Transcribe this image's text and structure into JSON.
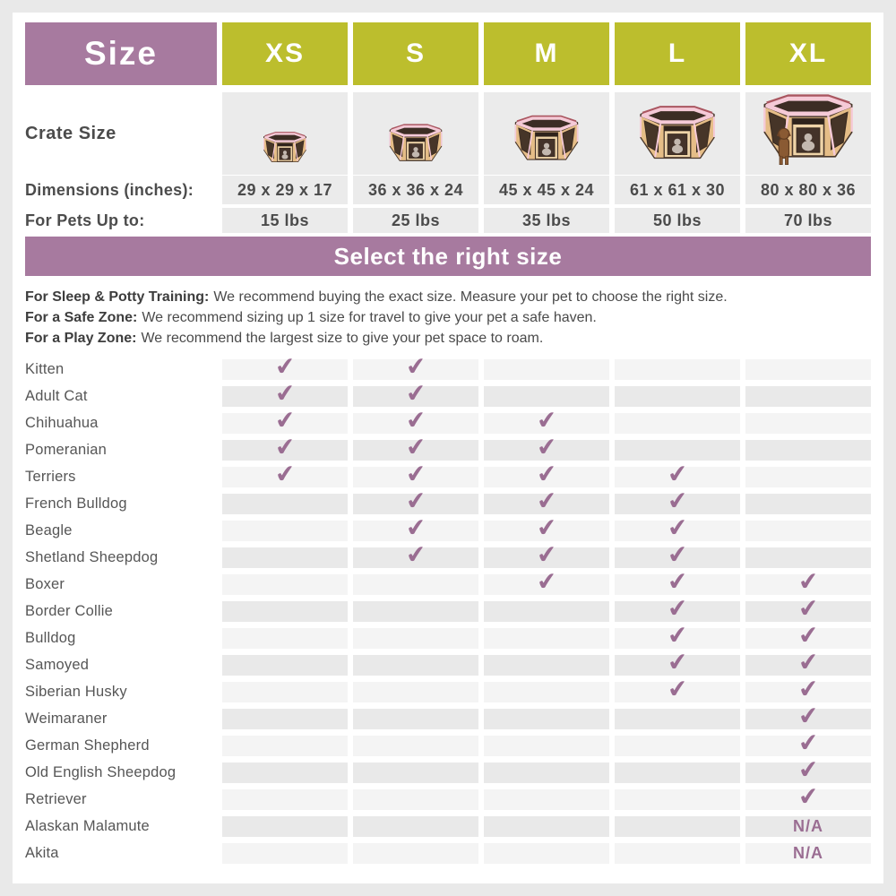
{
  "header": {
    "size_label": "Size",
    "columns": [
      "XS",
      "S",
      "M",
      "L",
      "XL"
    ]
  },
  "crate_row": {
    "label": "Crate Size",
    "icon": "playpen-illustration",
    "crates": [
      {
        "size": "XS",
        "scale": 54,
        "dog": false
      },
      {
        "size": "S",
        "scale": 66,
        "dog": false
      },
      {
        "size": "M",
        "scale": 80,
        "dog": false
      },
      {
        "size": "L",
        "scale": 94,
        "dog": false
      },
      {
        "size": "XL",
        "scale": 112,
        "dog": true
      }
    ]
  },
  "dimensions": {
    "label": "Dimensions (inches):",
    "values": [
      "29 x 29 x 17",
      "36 x 36 x 24",
      "45 x 45 x 24",
      "61 x 61 x 30",
      "80 x 80 x 36"
    ]
  },
  "pets": {
    "label": "For Pets Up to:",
    "values": [
      "15 lbs",
      "25 lbs",
      "35 lbs",
      "50 lbs",
      "70 lbs"
    ]
  },
  "banner": "Select the right size",
  "notes": [
    {
      "label": "For Sleep & Potty Training:",
      "text": "We recommend buying the exact size. Measure your pet to choose the right size."
    },
    {
      "label": "For a Safe Zone:",
      "text": "We recommend sizing up 1 size for travel to give your pet a safe haven."
    },
    {
      "label": "For a Play Zone:",
      "text": "We recommend the largest size to give your pet space to roam."
    }
  ],
  "check_glyph": "✔",
  "na_label": "N/A",
  "breeds": [
    {
      "name": "Kitten",
      "marks": [
        "check",
        "check",
        "",
        "",
        ""
      ]
    },
    {
      "name": "Adult Cat",
      "marks": [
        "check",
        "check",
        "",
        "",
        ""
      ]
    },
    {
      "name": "Chihuahua",
      "marks": [
        "check",
        "check",
        "check",
        "",
        ""
      ]
    },
    {
      "name": "Pomeranian",
      "marks": [
        "check",
        "check",
        "check",
        "",
        ""
      ]
    },
    {
      "name": "Terriers",
      "marks": [
        "check",
        "check",
        "check",
        "check",
        ""
      ]
    },
    {
      "name": "French Bulldog",
      "marks": [
        "",
        "check",
        "check",
        "check",
        ""
      ]
    },
    {
      "name": "Beagle",
      "marks": [
        "",
        "check",
        "check",
        "check",
        ""
      ]
    },
    {
      "name": "Shetland Sheepdog",
      "marks": [
        "",
        "check",
        "check",
        "check",
        ""
      ]
    },
    {
      "name": "Boxer",
      "marks": [
        "",
        "",
        "check",
        "check",
        "check"
      ]
    },
    {
      "name": "Border Collie",
      "marks": [
        "",
        "",
        "",
        "check",
        "check"
      ]
    },
    {
      "name": "Bulldog",
      "marks": [
        "",
        "",
        "",
        "check",
        "check"
      ]
    },
    {
      "name": "Samoyed",
      "marks": [
        "",
        "",
        "",
        "check",
        "check"
      ]
    },
    {
      "name": "Siberian Husky",
      "marks": [
        "",
        "",
        "",
        "check",
        "check"
      ]
    },
    {
      "name": "Weimaraner",
      "marks": [
        "",
        "",
        "",
        "",
        "check"
      ]
    },
    {
      "name": "German Shepherd",
      "marks": [
        "",
        "",
        "",
        "",
        "check"
      ]
    },
    {
      "name": "Old English Sheepdog",
      "marks": [
        "",
        "",
        "",
        "",
        "check"
      ]
    },
    {
      "name": "Retriever",
      "marks": [
        "",
        "",
        "",
        "",
        "check"
      ]
    },
    {
      "name": "Alaskan Malamute",
      "marks": [
        "",
        "",
        "",
        "",
        "na"
      ]
    },
    {
      "name": "Akita",
      "marks": [
        "",
        "",
        "",
        "",
        "na"
      ]
    }
  ],
  "colors": {
    "header_purple": "#a77a9f",
    "column_green": "#bcbe2d",
    "check_purple": "#9a6d92",
    "cell_gray_light": "#f4f4f4",
    "cell_gray_dark": "#e9e9e9"
  }
}
